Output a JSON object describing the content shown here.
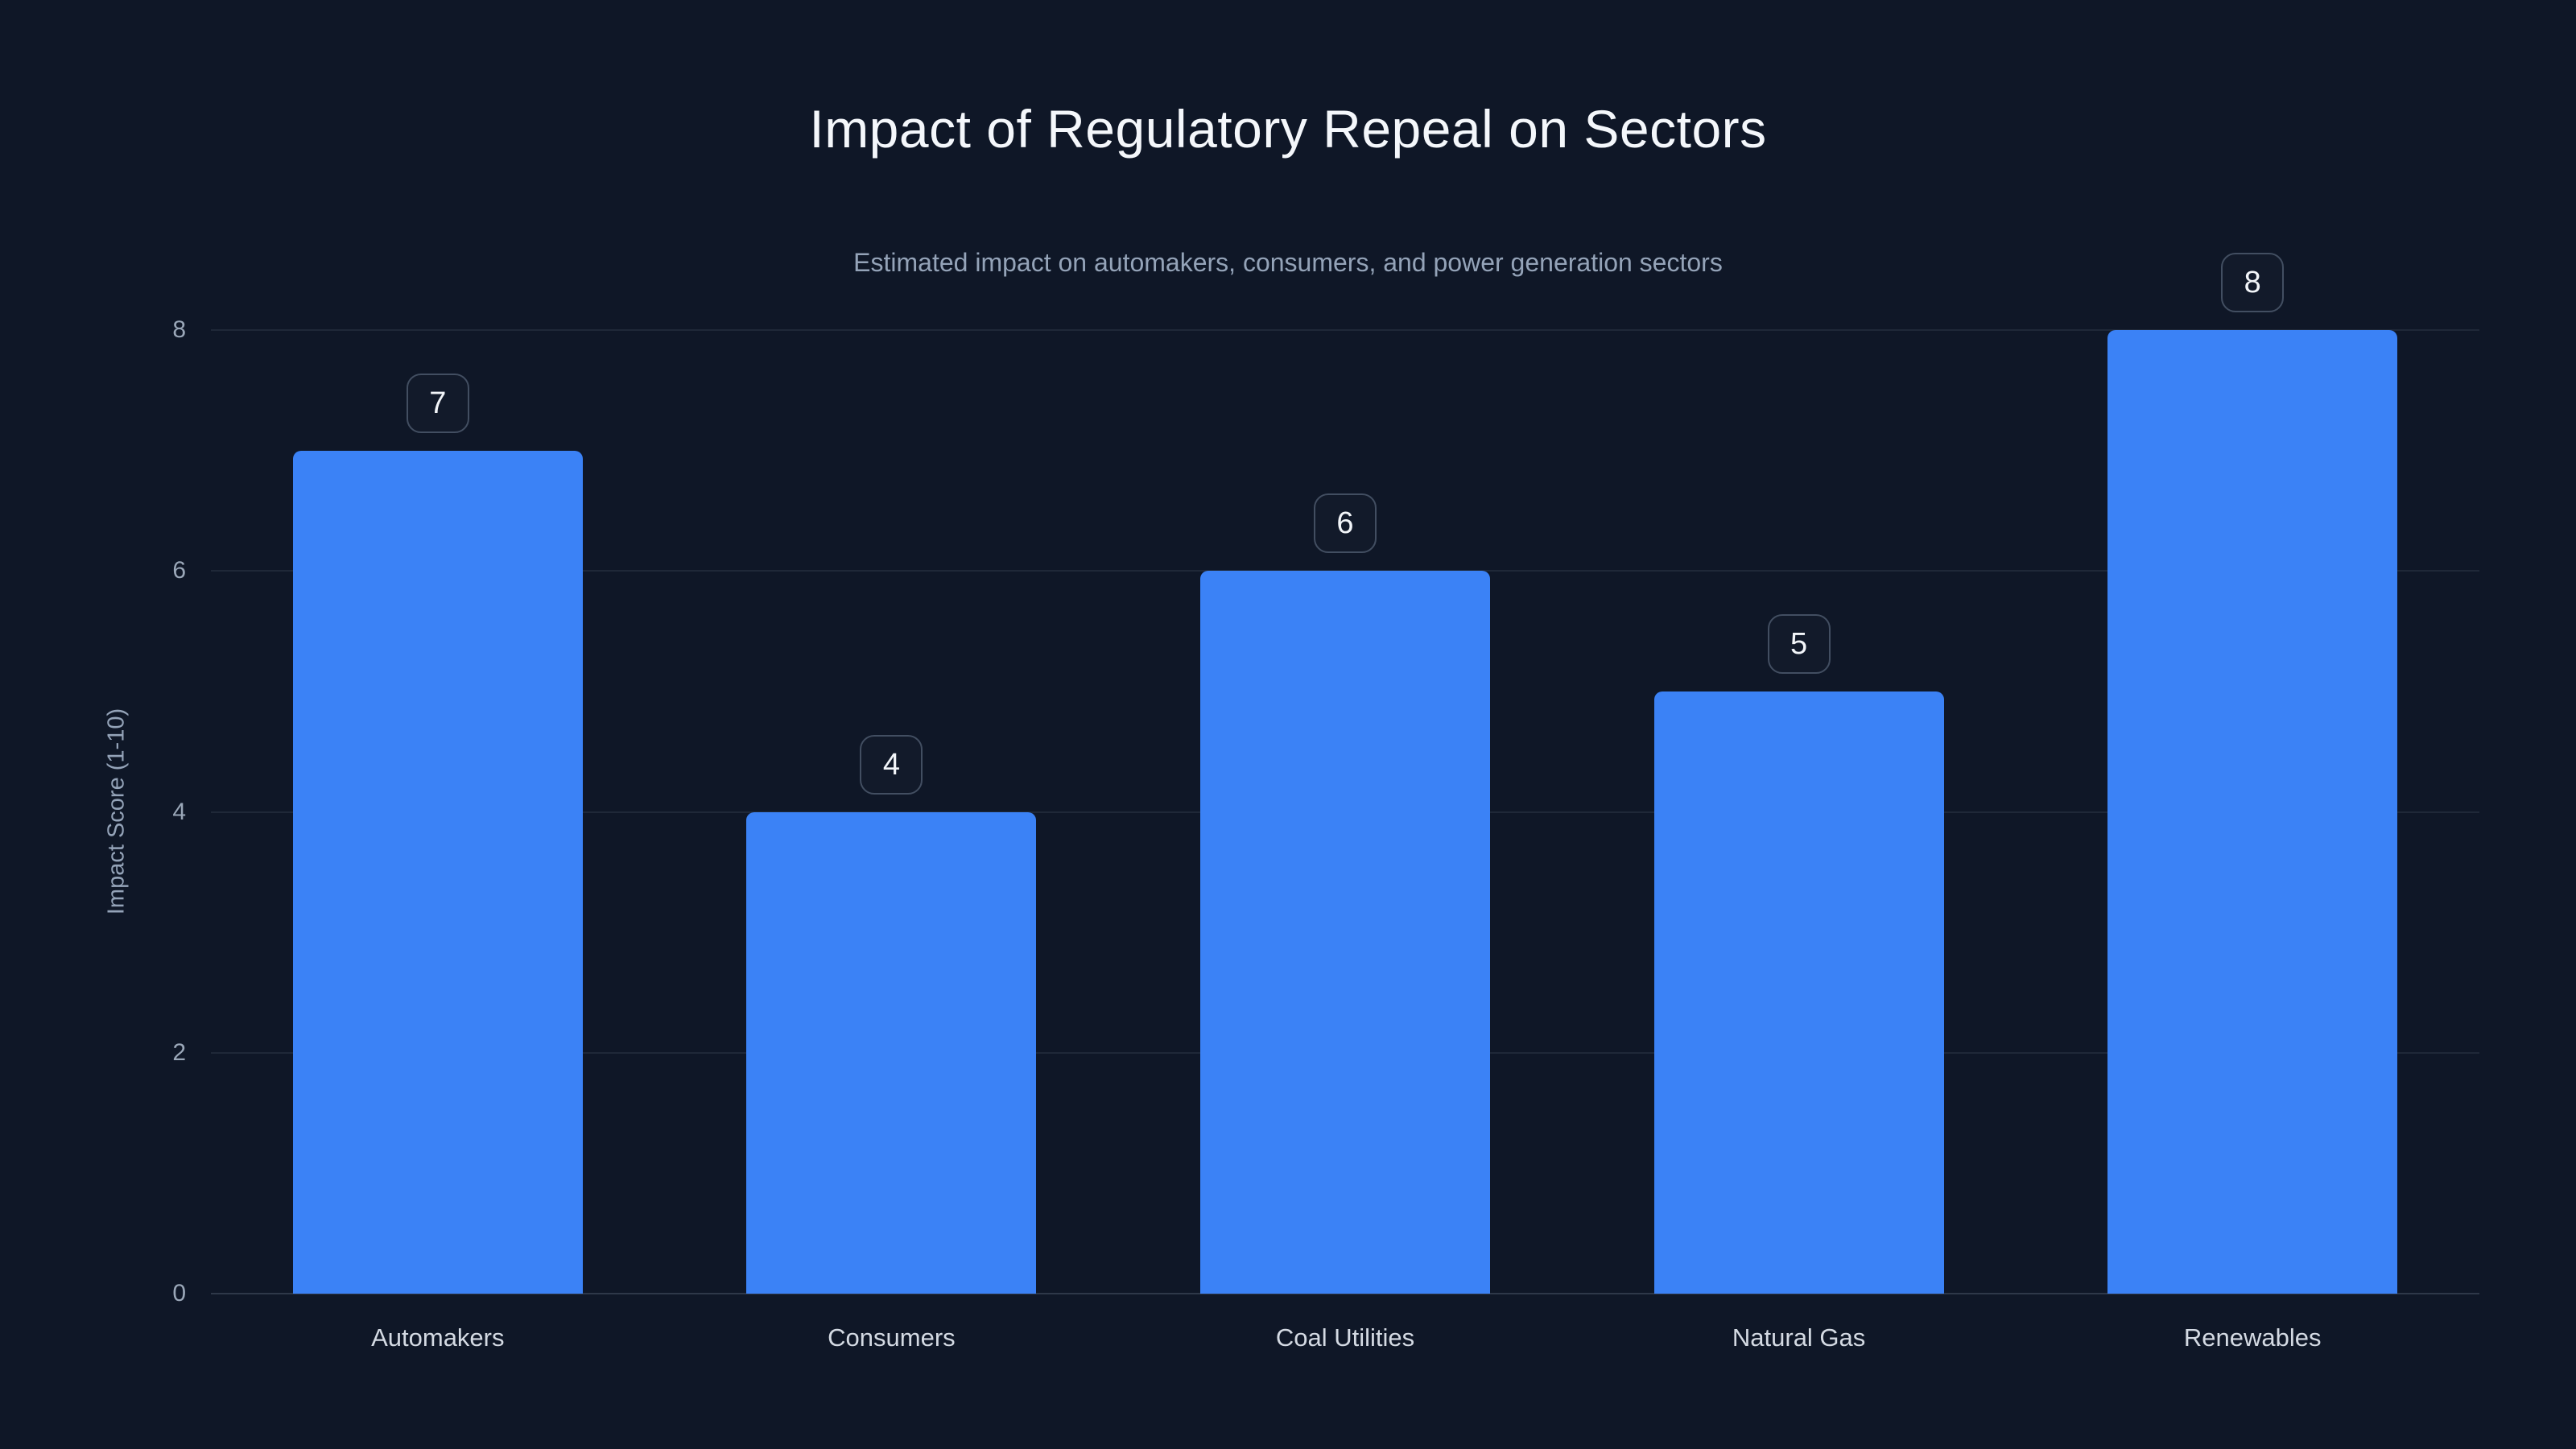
{
  "page": {
    "title": "Impact of Regulatory Repeal on Sectors",
    "subtitle": "Estimated impact on automakers, consumers, and power generation sectors"
  },
  "chart_data": {
    "type": "bar",
    "title": "Impact of Regulatory Repeal on Sectors",
    "subtitle": "Estimated impact on automakers, consumers, and power generation sectors",
    "categories": [
      "Automakers",
      "Consumers",
      "Coal Utilities",
      "Natural Gas",
      "Renewables"
    ],
    "values": [
      7,
      4,
      6,
      5,
      8
    ],
    "xlabel": "",
    "ylabel": "Impact Score (1-10)",
    "ylim": [
      0,
      8
    ],
    "yticks": [
      0,
      2,
      4,
      6,
      8
    ],
    "grid": "horizontal-only",
    "legend": "none",
    "value_labels": "shown in rounded badge above each bar"
  },
  "colors": {
    "background": "#0f1727",
    "accent": "#3b82f6",
    "title_text": "#f4f7fb",
    "muted_text": "#94a3b8",
    "category_text": "#d4dae3",
    "badge_border": "#424e61",
    "gridline": "rgba(148,163,184,0.12)"
  }
}
